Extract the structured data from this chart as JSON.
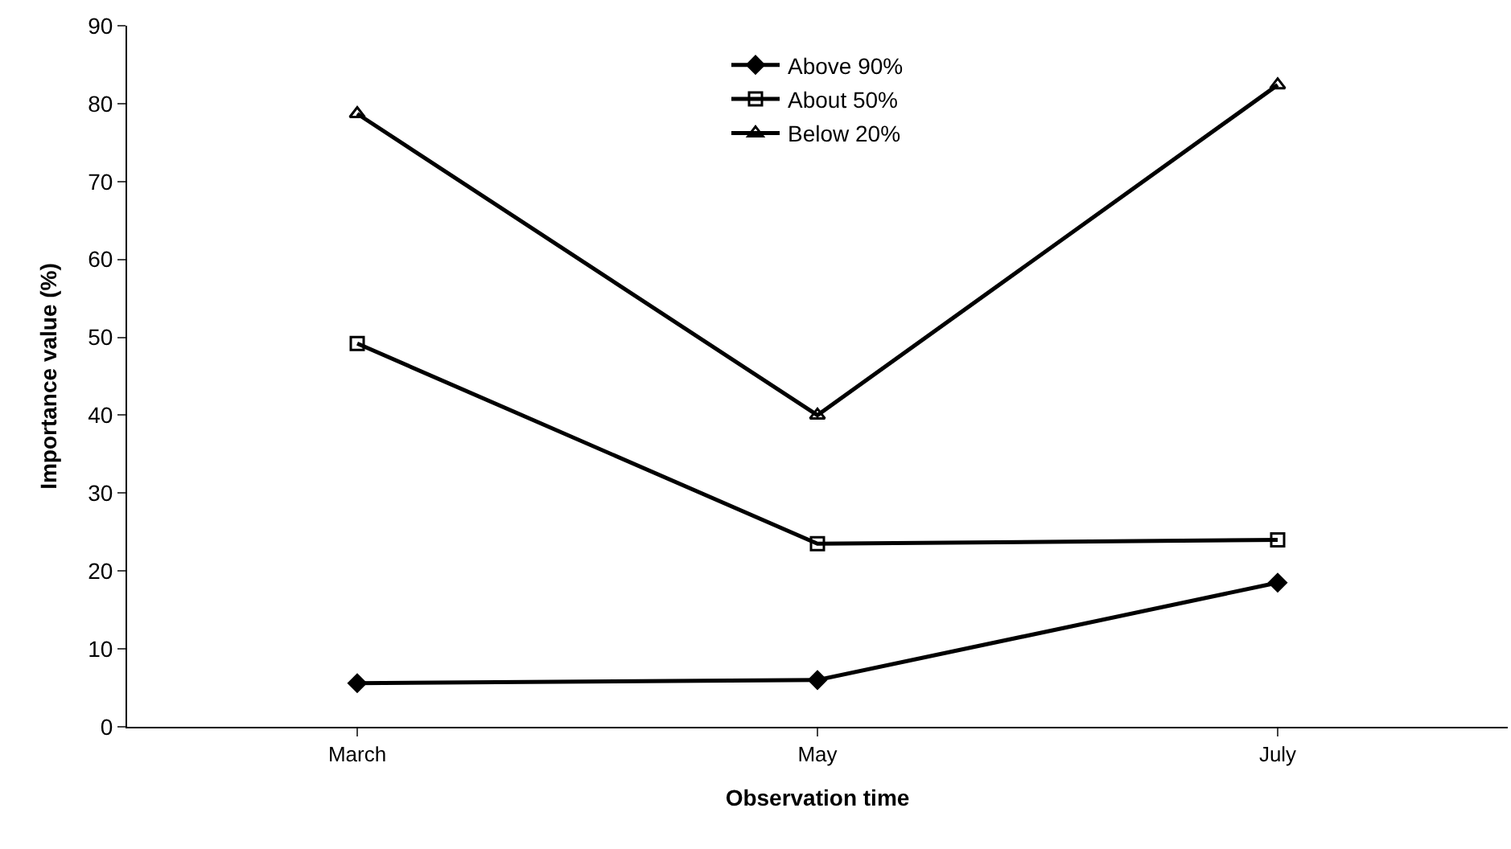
{
  "chart_data": {
    "type": "line",
    "xlabel": "Observation time",
    "ylabel": "Importance value (%)",
    "categories": [
      "March",
      "May",
      "July"
    ],
    "series": [
      {
        "name": "Above 90%",
        "color": "#000000",
        "marker": "diamond",
        "values": [
          5.6,
          6,
          18.5
        ]
      },
      {
        "name": "About 50%",
        "color": "#000000",
        "marker": "square",
        "values": [
          49.2,
          23.5,
          24
        ]
      },
      {
        "name": "Below 20%",
        "color": "#000000",
        "marker": "triangle",
        "values": [
          78.7,
          40,
          82.4
        ]
      }
    ],
    "ylim": [
      0,
      90
    ],
    "yticks": [
      0,
      10,
      20,
      30,
      40,
      50,
      60,
      70,
      80,
      90
    ],
    "legend": "top",
    "line_style": "solid"
  }
}
